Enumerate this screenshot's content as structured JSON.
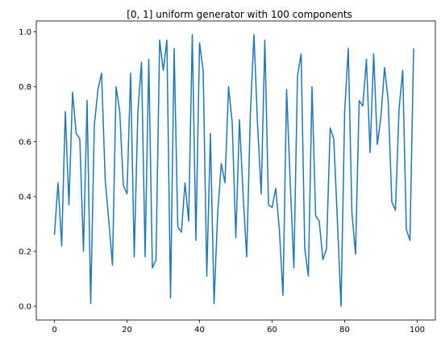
{
  "chart_data": {
    "type": "line",
    "title": "[0, 1] uniform generator with 100 components",
    "xlabel": "",
    "ylabel": "",
    "xlim": [
      -5,
      105
    ],
    "ylim": [
      -0.05,
      1.04
    ],
    "x_ticks": [
      0,
      20,
      40,
      60,
      80,
      100
    ],
    "x_tick_labels": [
      "0",
      "20",
      "40",
      "60",
      "80",
      "100"
    ],
    "y_ticks": [
      0.0,
      0.2,
      0.4,
      0.6,
      0.8,
      1.0
    ],
    "y_tick_labels": [
      "0.0",
      "0.2",
      "0.4",
      "0.6",
      "0.8",
      "1.0"
    ],
    "grid": false,
    "series": [
      {
        "color": "#1f77b4",
        "x": [
          0,
          1,
          2,
          3,
          4,
          5,
          6,
          7,
          8,
          9,
          10,
          11,
          12,
          13,
          14,
          15,
          16,
          17,
          18,
          19,
          20,
          21,
          22,
          23,
          24,
          25,
          26,
          27,
          28,
          29,
          30,
          31,
          32,
          33,
          34,
          35,
          36,
          37,
          38,
          39,
          40,
          41,
          42,
          43,
          44,
          45,
          46,
          47,
          48,
          49,
          50,
          51,
          52,
          53,
          54,
          55,
          56,
          57,
          58,
          59,
          60,
          61,
          62,
          63,
          64,
          65,
          66,
          67,
          68,
          69,
          70,
          71,
          72,
          73,
          74,
          75,
          76,
          77,
          78,
          79,
          80,
          81,
          82,
          83,
          84,
          85,
          86,
          87,
          88,
          89,
          90,
          91,
          92,
          93,
          94,
          95,
          96,
          97,
          98,
          99
        ],
        "values": [
          0.26,
          0.45,
          0.22,
          0.71,
          0.37,
          0.78,
          0.63,
          0.61,
          0.2,
          0.75,
          0.01,
          0.66,
          0.79,
          0.85,
          0.46,
          0.31,
          0.15,
          0.8,
          0.71,
          0.44,
          0.41,
          0.85,
          0.18,
          0.71,
          0.89,
          0.18,
          0.9,
          0.14,
          0.17,
          0.97,
          0.86,
          0.97,
          0.03,
          0.94,
          0.29,
          0.27,
          0.45,
          0.31,
          0.99,
          0.24,
          0.96,
          0.86,
          0.11,
          0.63,
          0.01,
          0.34,
          0.52,
          0.45,
          0.8,
          0.67,
          0.25,
          0.68,
          0.41,
          0.18,
          0.7,
          0.99,
          0.66,
          0.41,
          0.97,
          0.37,
          0.36,
          0.43,
          0.28,
          0.04,
          0.79,
          0.45,
          0.14,
          0.84,
          0.92,
          0.21,
          0.11,
          0.8,
          0.33,
          0.31,
          0.17,
          0.21,
          0.65,
          0.61,
          0.31,
          0.0,
          0.71,
          0.94,
          0.34,
          0.19,
          0.75,
          0.73,
          0.9,
          0.56,
          0.92,
          0.59,
          0.69,
          0.87,
          0.75,
          0.38,
          0.35,
          0.72,
          0.86,
          0.28,
          0.24,
          0.94
        ]
      }
    ]
  }
}
